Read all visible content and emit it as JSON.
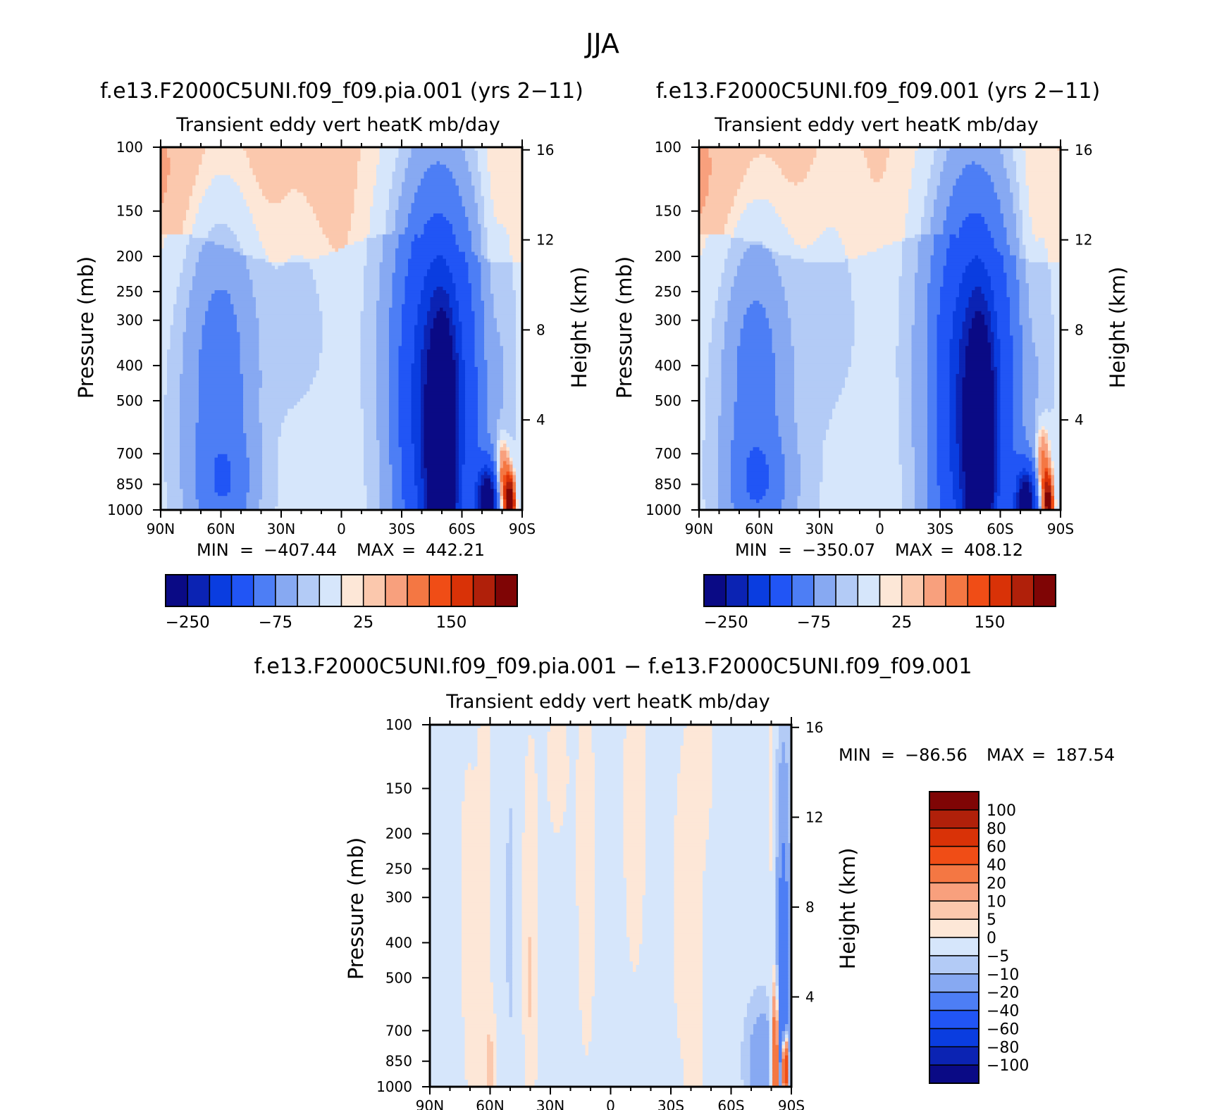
{
  "figure": {
    "title": "JJA"
  },
  "colors": {
    "ramp": [
      "#0a0a85",
      "#0b23b3",
      "#0a3de0",
      "#2155f5",
      "#4d7ef5",
      "#87a9f2",
      "#b3cbf6",
      "#d6e6fb",
      "#fde7d7",
      "#fbc8ad",
      "#f8a07d",
      "#f47743",
      "#f04d16",
      "#d93207",
      "#b0200a",
      "#7f0505"
    ],
    "diff_ramp": [
      "#0a0a85",
      "#0b23b3",
      "#0a3de0",
      "#2155f5",
      "#4d7ef5",
      "#87a9f2",
      "#b3cbf6",
      "#d6e6fb",
      "#fde7d7",
      "#fbc8ad",
      "#f8a07d",
      "#f47743",
      "#f04d16",
      "#d93207",
      "#b0200a",
      "#7f0505"
    ]
  },
  "chart_data": [
    {
      "id": "panel_1",
      "type": "heatmap",
      "title": "f.e13.F2000C5UNI.f09_f09.pia.001 (yrs 2−11)",
      "subtitle": "Transient eddy vert heatK mb/day",
      "xlabel": "",
      "ylabel": "Pressure (mb)",
      "ylabel_right": "Height (km)",
      "x_ticks": [
        "90N",
        "60N",
        "30N",
        "0",
        "30S",
        "60S",
        "90S"
      ],
      "y_ticks": [
        "100",
        "150",
        "200",
        "250",
        "300",
        "400",
        "500",
        "700",
        "850",
        "1000"
      ],
      "y_ticks_right": [
        "16",
        "12",
        "8",
        "4"
      ],
      "y_scale": "log",
      "stats": {
        "min_label": "MIN",
        "min": "−407.44",
        "max_label": "MAX",
        "max": "442.21"
      },
      "colorbar": {
        "orientation": "horizontal",
        "labels": [
          "−250",
          "−75",
          "25",
          "150"
        ]
      },
      "field": [
        {
          "lat": 90,
          "p": 130,
          "v": 15,
          "rx": 18,
          "ry": 0.25
        },
        {
          "lat": 57,
          "p": 120,
          "v": 10,
          "rx": 20,
          "ry": 0.22
        },
        {
          "lat": 30,
          "p": 115,
          "v": 5,
          "rx": 15,
          "ry": 0.25
        },
        {
          "lat": 10,
          "p": 120,
          "v": 8,
          "rx": 10,
          "ry": 0.2
        },
        {
          "lat": -75,
          "p": 220,
          "v": 15,
          "rx": 4,
          "ry": 0.35
        },
        {
          "lat": 15,
          "p": 660,
          "v": 12,
          "rx": 12,
          "ry": 0.12
        },
        {
          "lat": -23,
          "p": 560,
          "v": 8,
          "rx": 4,
          "ry": 0.13
        },
        {
          "lat": 70,
          "p": 760,
          "v": -8,
          "rx": 12,
          "ry": 0.35
        },
        {
          "lat": 60,
          "p": 520,
          "v": -30,
          "rx": 16,
          "ry": 0.5
        },
        {
          "lat": 60,
          "p": 400,
          "v": -60,
          "rx": 12,
          "ry": 0.3
        },
        {
          "lat": 58,
          "p": 860,
          "v": -60,
          "rx": 10,
          "ry": 0.1
        },
        {
          "lat": 20,
          "p": 310,
          "v": -20,
          "rx": 11,
          "ry": 0.35
        },
        {
          "lat": -48,
          "p": 560,
          "v": -250,
          "rx": 14,
          "ry": 0.45
        },
        {
          "lat": -48,
          "p": 360,
          "v": -40,
          "rx": 20,
          "ry": 0.35
        },
        {
          "lat": -50,
          "p": 700,
          "v": -420,
          "rx": 4,
          "ry": 0.2
        },
        {
          "lat": -73,
          "p": 950,
          "v": -350,
          "rx": 4,
          "ry": 0.07
        },
        {
          "lat": -80,
          "p": 850,
          "v": 150,
          "rx": 2.5,
          "ry": 0.08
        },
        {
          "lat": -84,
          "p": 960,
          "v": 300,
          "rx": 1.5,
          "ry": 0.05
        },
        {
          "lat": -80,
          "p": 550,
          "v": -12,
          "rx": 4,
          "ry": 0.3
        }
      ]
    },
    {
      "id": "panel_2",
      "type": "heatmap",
      "title": "f.e13.F2000C5UNI.f09_f09.001 (yrs 2−11)",
      "subtitle": "Transient eddy vert heatK mb/day",
      "xlabel": "",
      "ylabel": "Pressure (mb)",
      "ylabel_right": "Height (km)",
      "x_ticks": [
        "90N",
        "60N",
        "30N",
        "0",
        "30S",
        "60S",
        "90S"
      ],
      "y_ticks": [
        "100",
        "150",
        "200",
        "250",
        "300",
        "400",
        "500",
        "700",
        "850",
        "1000"
      ],
      "y_ticks_right": [
        "16",
        "12",
        "8",
        "4"
      ],
      "y_scale": "log",
      "stats": {
        "min_label": "MIN",
        "min": "−350.07",
        "max_label": "MAX",
        "max": "408.12"
      },
      "colorbar": {
        "orientation": "horizontal",
        "labels": [
          "−250",
          "−75",
          "25",
          "150"
        ]
      },
      "field": [
        {
          "lat": 90,
          "p": 130,
          "v": 15,
          "rx": 18,
          "ry": 0.25
        },
        {
          "lat": 57,
          "p": 120,
          "v": 10,
          "rx": 20,
          "ry": 0.22
        },
        {
          "lat": 30,
          "p": 115,
          "v": 5,
          "rx": 15,
          "ry": 0.25
        },
        {
          "lat": -75,
          "p": 220,
          "v": 15,
          "rx": 4,
          "ry": 0.35
        },
        {
          "lat": 15,
          "p": 680,
          "v": 12,
          "rx": 11,
          "ry": 0.12
        },
        {
          "lat": -23,
          "p": 470,
          "v": 8,
          "rx": 3,
          "ry": 0.13
        },
        {
          "lat": 70,
          "p": 760,
          "v": -8,
          "rx": 12,
          "ry": 0.35
        },
        {
          "lat": 60,
          "p": 500,
          "v": -30,
          "rx": 16,
          "ry": 0.5
        },
        {
          "lat": 62,
          "p": 420,
          "v": -60,
          "rx": 10,
          "ry": 0.25
        },
        {
          "lat": 60,
          "p": 860,
          "v": -70,
          "rx": 11,
          "ry": 0.1
        },
        {
          "lat": 25,
          "p": 300,
          "v": -20,
          "rx": 12,
          "ry": 0.4
        },
        {
          "lat": -47,
          "p": 560,
          "v": -250,
          "rx": 14,
          "ry": 0.45
        },
        {
          "lat": -47,
          "p": 360,
          "v": -40,
          "rx": 20,
          "ry": 0.35
        },
        {
          "lat": -50,
          "p": 700,
          "v": -380,
          "rx": 4,
          "ry": 0.2
        },
        {
          "lat": -73,
          "p": 950,
          "v": -320,
          "rx": 4,
          "ry": 0.07
        },
        {
          "lat": -81,
          "p": 800,
          "v": 120,
          "rx": 2.5,
          "ry": 0.09
        },
        {
          "lat": -84,
          "p": 960,
          "v": 250,
          "rx": 1.5,
          "ry": 0.05
        },
        {
          "lat": -80,
          "p": 550,
          "v": -12,
          "rx": 4,
          "ry": 0.3
        }
      ]
    },
    {
      "id": "panel_diff",
      "type": "heatmap",
      "title": "f.e13.F2000C5UNI.f09_f09.pia.001 − f.e13.F2000C5UNI.f09_f09.001",
      "subtitle": "Transient eddy vert heatK mb/day",
      "xlabel": "",
      "ylabel": "Pressure (mb)",
      "ylabel_right": "Height (km)",
      "x_ticks": [
        "90N",
        "60N",
        "30N",
        "0",
        "30S",
        "60S",
        "90S"
      ],
      "y_ticks": [
        "100",
        "150",
        "200",
        "250",
        "300",
        "400",
        "500",
        "700",
        "850",
        "1000"
      ],
      "y_ticks_right": [
        "16",
        "12",
        "8",
        "4"
      ],
      "y_scale": "log",
      "stats": {
        "min_label": "MIN",
        "min": "−86.56",
        "max_label": "MAX",
        "max": "187.54"
      },
      "colorbar": {
        "orientation": "vertical",
        "labels": [
          "100",
          "80",
          "60",
          "40",
          "20",
          "10",
          "5",
          "0",
          "−5",
          "−10",
          "−20",
          "−40",
          "−60",
          "−80",
          "−100"
        ]
      },
      "field": [
        {
          "lat": 68,
          "p": 650,
          "v": 3,
          "rx": 3,
          "ry": 0.5
        },
        {
          "lat": 72,
          "p": 300,
          "v": 3,
          "rx": 2.5,
          "ry": 0.3
        },
        {
          "lat": 62,
          "p": 180,
          "v": 3,
          "rx": 3,
          "ry": 0.6
        },
        {
          "lat": 60,
          "p": 880,
          "v": 8,
          "rx": 2,
          "ry": 0.1
        },
        {
          "lat": 40,
          "p": 300,
          "v": 6,
          "rx": 2.5,
          "ry": 0.3
        },
        {
          "lat": 40,
          "p": 750,
          "v": 4,
          "rx": 2,
          "ry": 0.2
        },
        {
          "lat": 27,
          "p": 130,
          "v": 3,
          "rx": 5,
          "ry": 0.2
        },
        {
          "lat": 12,
          "p": 260,
          "v": 3,
          "rx": 5,
          "ry": 0.55
        },
        {
          "lat": -12,
          "p": 170,
          "v": 3,
          "rx": 6,
          "ry": 0.5
        },
        {
          "lat": -35,
          "p": 350,
          "v": 3,
          "rx": 4,
          "ry": 0.35
        },
        {
          "lat": -42,
          "p": 650,
          "v": 4,
          "rx": 3,
          "ry": 0.3
        },
        {
          "lat": -45,
          "p": 130,
          "v": 3,
          "rx": 6,
          "ry": 0.25
        },
        {
          "lat": -80,
          "p": 200,
          "v": 3,
          "rx": 2,
          "ry": 0.6
        },
        {
          "lat": 50,
          "p": 330,
          "v": -6,
          "rx": 1.5,
          "ry": 0.25
        },
        {
          "lat": -86,
          "p": 600,
          "v": -30,
          "rx": 2.5,
          "ry": 0.45
        },
        {
          "lat": -76,
          "p": 850,
          "v": -15,
          "rx": 6,
          "ry": 0.12
        },
        {
          "lat": -82,
          "p": 860,
          "v": 60,
          "rx": 1.2,
          "ry": 0.13
        },
        {
          "lat": -87,
          "p": 900,
          "v": 100,
          "rx": 1,
          "ry": 0.06
        }
      ]
    }
  ]
}
